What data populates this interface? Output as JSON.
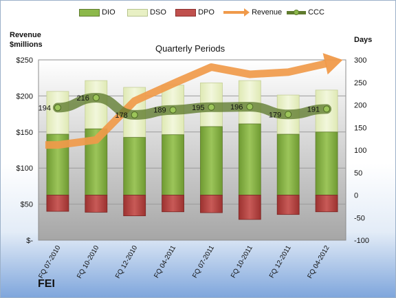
{
  "chart_data": {
    "type": "bar",
    "title": "Quarterly Periods",
    "company_label": "FEI",
    "left_axis_label_line1": "Revenue",
    "left_axis_label_line2": "$millions",
    "right_axis_label": "Days",
    "legend": [
      "DIO",
      "DSO",
      "DPO",
      "Revenue",
      "CCC"
    ],
    "legend_position": "top",
    "categories": [
      "FQ 07-2010",
      "FQ 10-2010",
      "FQ 12-2010",
      "FQ 04-2011",
      "FQ 07-2011",
      "FQ 10-2011",
      "FQ 12-2011",
      "FQ 04-2012"
    ],
    "left_axis": {
      "min": 0,
      "max": 250,
      "ticks": [
        0,
        50,
        100,
        150,
        200,
        250
      ],
      "tick_labels": [
        "$-",
        "$50",
        "$100",
        "$150",
        "$200",
        "$250"
      ]
    },
    "right_axis": {
      "min": -100,
      "max": 300,
      "ticks": [
        -100,
        -50,
        0,
        50,
        100,
        150,
        200,
        250,
        300
      ]
    },
    "grid": true,
    "series": [
      {
        "name": "DIO",
        "axis": "right",
        "color": "#8cb84a",
        "values": [
          135,
          147,
          128,
          134,
          152,
          158,
          135,
          140
        ]
      },
      {
        "name": "DSO",
        "axis": "right",
        "color": "#e8f0c4",
        "values": [
          95,
          107,
          111,
          110,
          97,
          96,
          87,
          93
        ]
      },
      {
        "name": "DPO",
        "axis": "right",
        "color": "#c0504d",
        "values": [
          -36,
          -38,
          -46,
          -37,
          -39,
          -54,
          -43,
          -37
        ]
      },
      {
        "name": "CCC",
        "axis": "right",
        "color": "#5f7b2e",
        "values": [
          194,
          216,
          178,
          189,
          195,
          196,
          179,
          191
        ]
      },
      {
        "name": "Revenue",
        "axis": "left",
        "color": "#f09a4a",
        "values": [
          132,
          139,
          193,
          217,
          240,
          230,
          233,
          245
        ]
      }
    ],
    "data_labels": [
      "194",
      "216",
      "178",
      "189",
      "195",
      "196",
      "179",
      "191"
    ]
  }
}
